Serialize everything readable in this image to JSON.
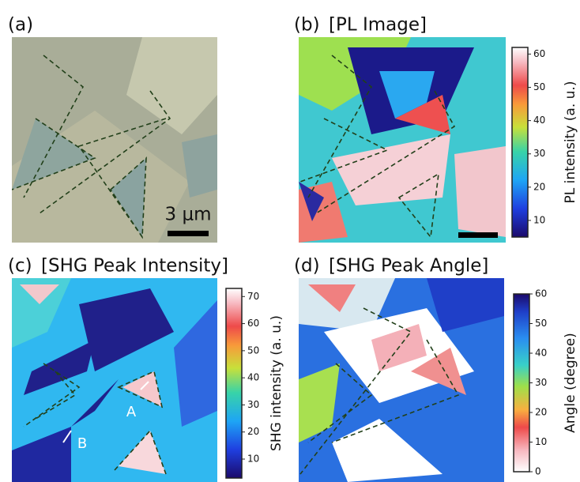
{
  "panels": [
    {
      "label": "(a)",
      "scale_bar": "3 μm"
    },
    {
      "label": "(b)",
      "title": "[PL Image]",
      "colorbar": {
        "label": "PL intensity (a. u.)",
        "ticks": [
          10,
          20,
          30,
          40,
          50,
          60
        ],
        "lim": [
          5,
          62
        ]
      }
    },
    {
      "label": "(c)",
      "title": "[SHG Peak Intensity]",
      "colorbar": {
        "label": "SHG intensity (a. u.)",
        "ticks": [
          10,
          20,
          30,
          40,
          50,
          60,
          70
        ],
        "lim": [
          3,
          73
        ]
      },
      "annotations": [
        "A",
        "B"
      ]
    },
    {
      "label": "(d)",
      "title": "[SHG Peak Angle]",
      "colorbar": {
        "label": "Angle (degree)",
        "ticks": [
          0,
          10,
          20,
          30,
          40,
          50,
          60
        ],
        "lim": [
          0,
          60
        ]
      }
    }
  ]
}
